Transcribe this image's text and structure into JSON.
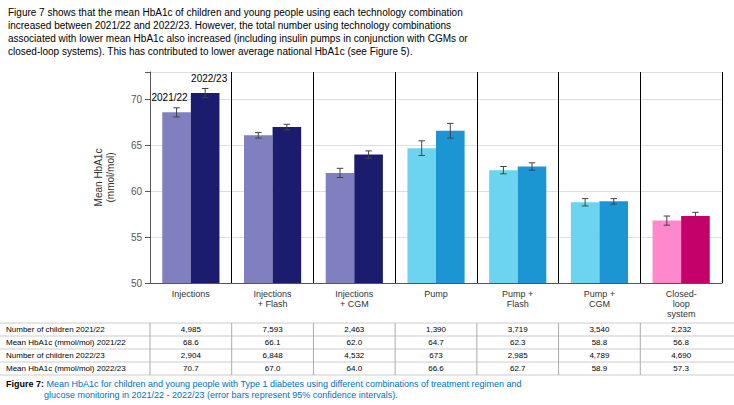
{
  "chart_data": {
    "type": "bar",
    "categories": [
      "Injections",
      "Injections\n+ Flash",
      "Injections\n+ CGM",
      "Pump",
      "Pump +\nFlash",
      "Pump +\nCGM",
      "Closed-\nloop\nsystem"
    ],
    "series": [
      {
        "name": "2021/22",
        "colors": [
          "#8080C0",
          "#8080C0",
          "#8080C0",
          "#6DD4F0",
          "#6DD4F0",
          "#6DD4F0",
          "#FF88CC"
        ],
        "values": [
          68.6,
          66.1,
          62.0,
          64.7,
          62.3,
          58.8,
          56.8
        ],
        "errors": [
          0.5,
          0.3,
          0.5,
          0.8,
          0.4,
          0.4,
          0.5
        ]
      },
      {
        "name": "2022/23",
        "colors": [
          "#1C1C6E",
          "#1C1C6E",
          "#1C1C6E",
          "#1C96D2",
          "#1C96D2",
          "#1C96D2",
          "#C4006A"
        ],
        "values": [
          70.7,
          67.0,
          64.0,
          66.6,
          62.7,
          58.9,
          57.3
        ],
        "errors": [
          0.5,
          0.3,
          0.4,
          0.8,
          0.4,
          0.3,
          0.4
        ]
      }
    ],
    "ylabel": "Mean HbA1c\n(mmol/mol)",
    "ylim": [
      50,
      73
    ],
    "yticks": [
      50,
      55,
      60,
      65,
      70
    ],
    "grid": true,
    "header": "Figure 7 shows that the mean HbA1c of children and young people using each technology combination\nincreased between 2021/22 and 2022/23. However, the total number using technology combinations\nassociated with lower mean HbA1c also increased (including insulin pumps in conjunction with CGMs or\nclosed-loop systems). This has contributed to lower average national HbA1c (see Figure 5).",
    "table": [
      [
        "Number of children 2021/22",
        "4,985",
        "7,593",
        "2,463",
        "1,390",
        "3,719",
        "3,540",
        "2,232"
      ],
      [
        "Mean HbA1c (mmol/mol) 2021/22",
        "68.6",
        "66.1",
        "62.0",
        "64.7",
        "62.3",
        "58.8",
        "56.8"
      ],
      [
        "Number of children 2022/23",
        "2,904",
        "6,848",
        "4,532",
        "673",
        "2,985",
        "4,789",
        "4,690"
      ],
      [
        "Mean HbA1c (mmol/mol) 2022/23",
        "70.7",
        "67.0",
        "64.0",
        "66.6",
        "62.7",
        "58.9",
        "57.3"
      ]
    ],
    "caption": {
      "bold": "Figure 7:",
      "text": " Mean HbA1c for children and young people with Type 1 diabetes using different combinations of treatment regimen and\nglucose monitoring in 2021/22 - 2022/23 (error bars represent 95% confidence intervals).",
      "color": "#0070C0"
    }
  }
}
